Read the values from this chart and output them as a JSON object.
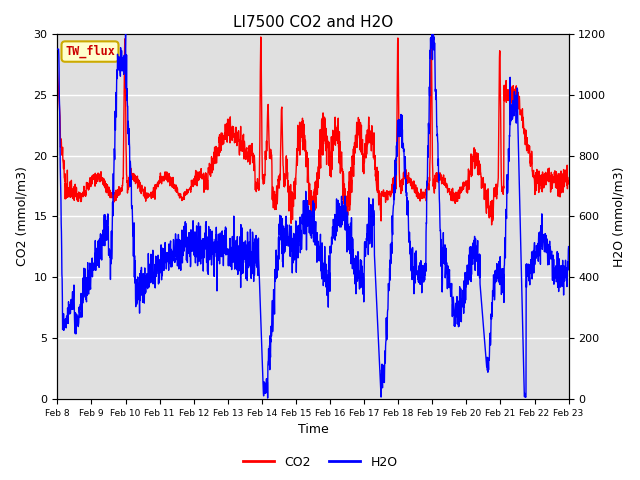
{
  "title": "LI7500 CO2 and H2O",
  "xlabel": "Time",
  "ylabel_left": "CO2 (mmol/m3)",
  "ylabel_right": "H2O (mmol/m3)",
  "ylim_left": [
    0,
    30
  ],
  "ylim_right": [
    0,
    1200
  ],
  "xtick_labels": [
    "Feb 8",
    "Feb 9",
    "Feb 10",
    "Feb 11",
    "Feb 12",
    "Feb 13",
    "Feb 14",
    "Feb 15",
    "Feb 16",
    "Feb 17",
    "Feb 18",
    "Feb 19",
    "Feb 20",
    "Feb 21",
    "Feb 22",
    "Feb 23"
  ],
  "co2_color": "#ff0000",
  "h2o_color": "#0000ff",
  "bg_color": "#e0e0e0",
  "legend_label_co2": "CO2",
  "legend_label_h2o": "H2O",
  "site_label": "TW_flux",
  "site_label_bg": "#ffffcc",
  "site_label_border": "#ccaa00",
  "line_width": 1.0,
  "figsize": [
    6.4,
    4.8
  ],
  "dpi": 100
}
